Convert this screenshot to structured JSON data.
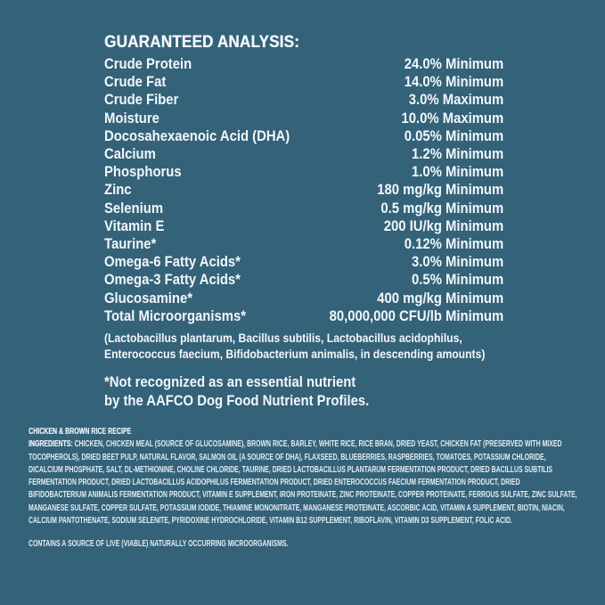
{
  "theme": {
    "background_color": "#346279",
    "analysis_text_color": "#F2F7FA",
    "ingredients_text_color": "#E2ECF2"
  },
  "analysis": {
    "heading": "GUARANTEED ANALYSIS:",
    "rows": [
      {
        "label": "Crude Protein",
        "value": "24.0% Minimum"
      },
      {
        "label": "Crude Fat",
        "value": "14.0% Minimum"
      },
      {
        "label": "Crude Fiber",
        "value": "3.0% Maximum"
      },
      {
        "label": "Moisture",
        "value": "10.0% Maximum"
      },
      {
        "label": "Docosahexaenoic Acid (DHA)",
        "value": "0.05% Minimum"
      },
      {
        "label": "Calcium",
        "value": "1.2% Minimum"
      },
      {
        "label": "Phosphorus",
        "value": "1.0% Minimum"
      },
      {
        "label": "Zinc",
        "value": "180 mg/kg Minimum"
      },
      {
        "label": "Selenium",
        "value": "0.5 mg/kg Minimum"
      },
      {
        "label": "Vitamin E",
        "value": "200 IU/kg Minimum"
      },
      {
        "label": "Taurine*",
        "value": "0.12% Minimum"
      },
      {
        "label": "Omega-6 Fatty Acids*",
        "value": "3.0% Minimum"
      },
      {
        "label": "Omega-3 Fatty Acids*",
        "value": "0.5% Minimum"
      },
      {
        "label": "Glucosamine*",
        "value": "400 mg/kg Minimum"
      },
      {
        "label": "Total Microorganisms*",
        "value": "80,000,000 CFU/lb Minimum"
      }
    ],
    "microorganisms_note_line1": "(Lactobacillus plantarum, Bacillus subtilis, Lactobacillus acidophilus,",
    "microorganisms_note_line2": "Enterococcus faecium, Bifidobacterium animalis, in descending amounts)",
    "footnote_line1": "*Not recognized as an essential nutrient",
    "footnote_line2": "by the AAFCO Dog Food Nutrient Profiles."
  },
  "ingredients": {
    "recipe_title": "CHICKEN & BROWN RICE RECIPE",
    "label": "INGREDIENTS:",
    "text": "CHICKEN, CHICKEN MEAL (SOURCE OF GLUCOSAMINE), BROWN RICE, BARLEY, WHITE RICE, RICE BRAN, DRIED YEAST, CHICKEN FAT (PRESERVED WITH MIXED TOCOPHEROLS), DRIED BEET PULP, NATURAL FLAVOR, SALMON OIL (A SOURCE OF DHA), FLAXSEED, BLUEBERRIES, RASPBERRIES, TOMATOES, POTASSIUM CHLORIDE, DICALCIUM PHOSPHATE, SALT, DL-METHIONINE, CHOLINE CHLORIDE, TAURINE, DRIED LACTOBACILLUS PLANTARUM FERMENTATION PRODUCT, DRIED BACILLUS SUBTILIS FERMENTATION PRODUCT, DRIED LACTOBACILLUS ACIDOPHILUS FERMENTATION PRODUCT, DRIED ENTEROCOCCUS FAECIUM FERMENTATION PRODUCT, DRIED BIFIDOBACTERIUM ANIMALIS FERMENTATION PRODUCT, VITAMIN E SUPPLEMENT, IRON PROTEINATE, ZINC PROTEINATE, COPPER PROTEINATE, FERROUS SULFATE, ZINC SULFATE, MANGANESE SULFATE, COPPER SULFATE, POTASSIUM IODIDE, THIAMINE MONONITRATE, MANGANESE PROTEINATE, ASCORBIC ACID, VITAMIN A SUPPLEMENT, BIOTIN, NIACIN, CALCIUM PANTOTHENATE, SODIUM SELENITE, PYRIDOXINE HYDROCHLORIDE, VITAMIN B12 SUPPLEMENT, RIBOFLAVIN, VITAMIN D3 SUPPLEMENT, FOLIC ACID.",
    "contains_note": "CONTAINS A SOURCE OF LIVE (VIABLE) NATURALLY OCCURRING MICROORGANISMS."
  }
}
